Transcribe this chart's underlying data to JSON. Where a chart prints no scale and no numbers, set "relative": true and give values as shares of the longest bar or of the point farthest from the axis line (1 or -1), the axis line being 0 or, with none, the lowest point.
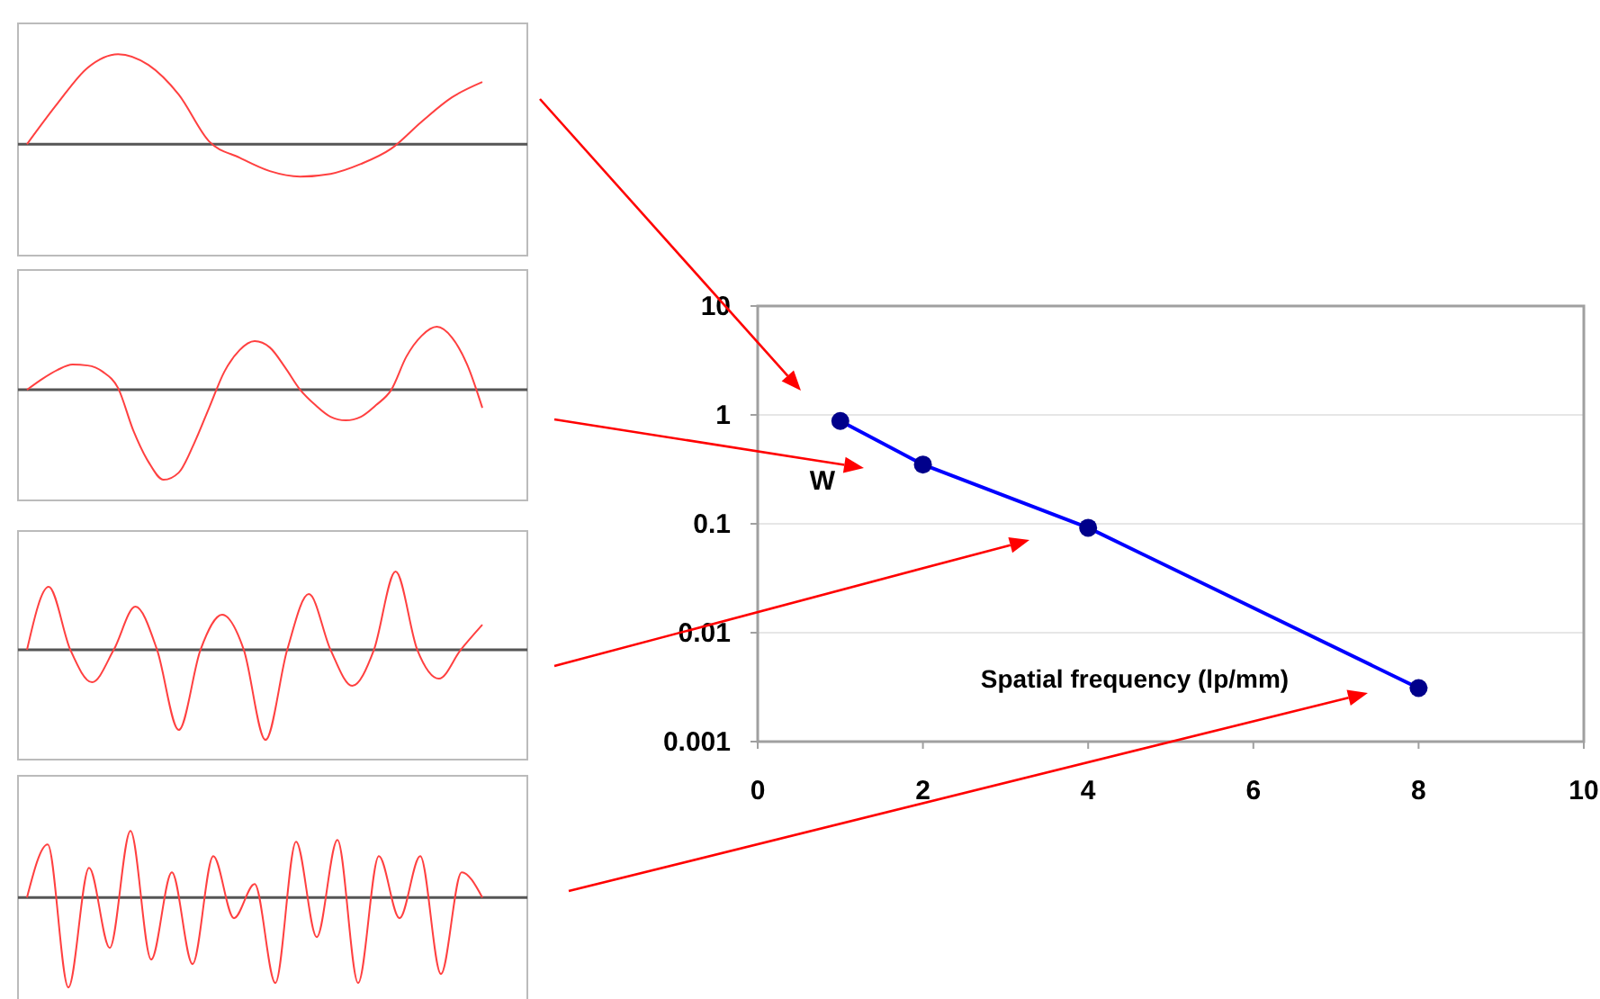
{
  "chart_data": [
    {
      "type": "line",
      "relative": true,
      "categories": [
        null,
        null,
        null,
        null,
        null,
        null,
        null,
        null,
        null,
        null,
        null,
        null,
        null,
        null,
        null,
        null
      ],
      "series": [
        {
          "color": "#ff4040",
          "values": [
            0,
            0.45,
            0.85,
            1.0,
            0.88,
            0.55,
            0.03,
            -0.15,
            -0.3,
            -0.36,
            -0.33,
            -0.22,
            -0.05,
            0.25,
            0.52,
            0.69
          ]
        }
      ],
      "marker": "none"
    },
    {
      "type": "line",
      "relative": true,
      "categories": [
        null,
        null,
        null,
        null,
        null,
        null,
        null,
        null,
        null,
        null,
        null,
        null,
        null,
        null,
        null,
        null,
        null,
        null,
        null,
        null,
        null,
        null,
        null,
        null,
        null,
        null,
        null,
        null,
        null,
        null,
        null
      ],
      "series": [
        {
          "color": "#ff4040",
          "values": [
            0,
            0.12,
            0.22,
            0.28,
            0.27,
            0.2,
            0.02,
            -0.45,
            -0.8,
            -1,
            -0.92,
            -0.6,
            -0.2,
            0.2,
            0.44,
            0.54,
            0.47,
            0.25,
            0,
            -0.17,
            -0.3,
            -0.34,
            -0.3,
            -0.17,
            0,
            0.37,
            0.6,
            0.7,
            0.58,
            0.28,
            -0.2
          ]
        }
      ],
      "marker": "none"
    },
    {
      "type": "line",
      "relative": true,
      "categories": [
        null,
        null,
        null,
        null,
        null,
        null,
        null,
        null,
        null,
        null,
        null,
        null,
        null,
        null,
        null,
        null,
        null,
        null,
        null,
        null,
        null,
        null
      ],
      "series": [
        {
          "color": "#ff4040",
          "values": [
            0,
            0.7,
            0,
            -0.36,
            0,
            0.48,
            0,
            -0.89,
            0,
            0.39,
            0,
            -1,
            0,
            0.62,
            0,
            -0.4,
            0,
            0.87,
            0,
            -0.32,
            0,
            0.28
          ]
        }
      ],
      "marker": "none"
    },
    {
      "type": "line",
      "relative": true,
      "categories": [
        null,
        null,
        null,
        null,
        null,
        null,
        null,
        null,
        null,
        null,
        null,
        null,
        null,
        null,
        null,
        null,
        null,
        null,
        null,
        null,
        null,
        null,
        null
      ],
      "series": [
        {
          "color": "#ff4040",
          "values": [
            0,
            0.59,
            -1,
            0.33,
            -0.56,
            0.74,
            -0.69,
            0.28,
            -0.74,
            0.46,
            -0.23,
            0.15,
            -0.95,
            0.62,
            -0.44,
            0.64,
            -0.95,
            0.46,
            -0.23,
            0.46,
            -0.85,
            0.28,
            0
          ]
        }
      ],
      "marker": "none"
    },
    {
      "type": "line",
      "xlabel": "Spatial frequency (lp/mm)",
      "x": [
        1,
        2,
        4,
        8
      ],
      "series": [
        {
          "color": "#0000ff",
          "values": [
            0.88,
            0.35,
            0.092,
            0.0031
          ]
        }
      ],
      "xlim": [
        0,
        10
      ],
      "xticks": [
        0,
        2,
        4,
        6,
        8,
        10
      ],
      "ylim": [
        0.001,
        10
      ],
      "yticks": [
        0.001,
        0.01,
        0.1,
        1,
        10
      ],
      "log": true,
      "grid": "y",
      "marker": "circle",
      "annotations": [
        "W"
      ]
    }
  ]
}
